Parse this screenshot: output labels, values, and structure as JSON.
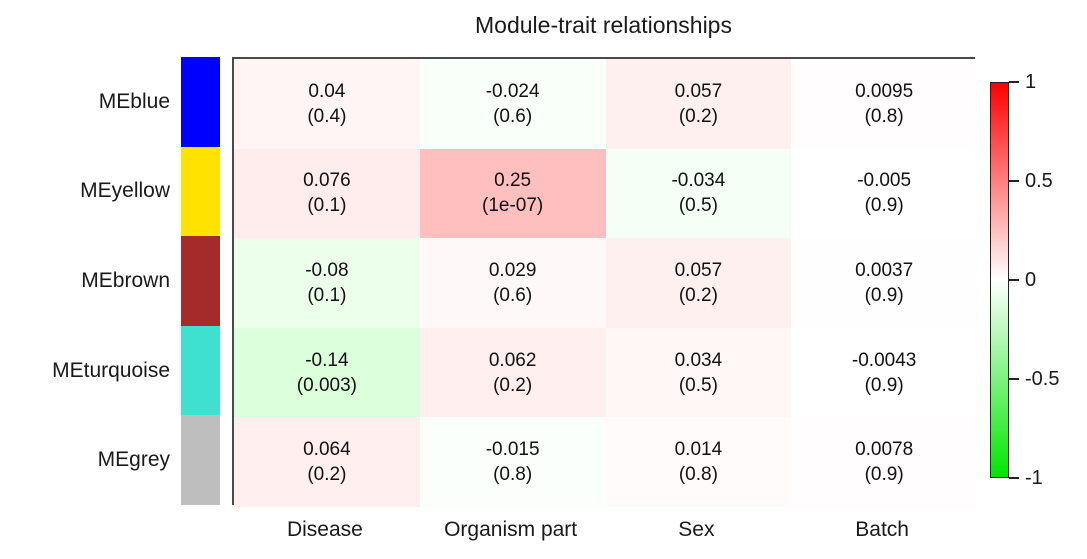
{
  "chart_data": {
    "type": "heatmap",
    "title": "Module-trait relationships",
    "rows": [
      {
        "label": "MEblue",
        "color": "#0000FF"
      },
      {
        "label": "MEyellow",
        "color": "#FFE200"
      },
      {
        "label": "MEbrown",
        "color": "#A52A2A"
      },
      {
        "label": "MEturquoise",
        "color": "#40E0D0"
      },
      {
        "label": "MEgrey",
        "color": "#BEBEBE"
      }
    ],
    "columns": [
      "Disease",
      "Organism part",
      "Sex",
      "Batch"
    ],
    "cells": [
      [
        {
          "corr": 0.04,
          "label": "0.04",
          "p": "(0.4)"
        },
        {
          "corr": -0.024,
          "label": "-0.024",
          "p": "(0.6)"
        },
        {
          "corr": 0.057,
          "label": "0.057",
          "p": "(0.2)"
        },
        {
          "corr": 0.0095,
          "label": "0.0095",
          "p": "(0.8)"
        }
      ],
      [
        {
          "corr": 0.076,
          "label": "0.076",
          "p": "(0.1)"
        },
        {
          "corr": 0.25,
          "label": "0.25",
          "p": "(1e-07)"
        },
        {
          "corr": -0.034,
          "label": "-0.034",
          "p": "(0.5)"
        },
        {
          "corr": -0.005,
          "label": "-0.005",
          "p": "(0.9)"
        }
      ],
      [
        {
          "corr": -0.08,
          "label": "-0.08",
          "p": "(0.1)"
        },
        {
          "corr": 0.029,
          "label": "0.029",
          "p": "(0.6)"
        },
        {
          "corr": 0.057,
          "label": "0.057",
          "p": "(0.2)"
        },
        {
          "corr": 0.0037,
          "label": "0.0037",
          "p": "(0.9)"
        }
      ],
      [
        {
          "corr": -0.14,
          "label": "-0.14",
          "p": "(0.003)"
        },
        {
          "corr": 0.062,
          "label": "0.062",
          "p": "(0.2)"
        },
        {
          "corr": 0.034,
          "label": "0.034",
          "p": "(0.5)"
        },
        {
          "corr": -0.0043,
          "label": "-0.0043",
          "p": "(0.9)"
        }
      ],
      [
        {
          "corr": 0.064,
          "label": "0.064",
          "p": "(0.2)"
        },
        {
          "corr": -0.015,
          "label": "-0.015",
          "p": "(0.8)"
        },
        {
          "corr": 0.014,
          "label": "0.014",
          "p": "(0.8)"
        },
        {
          "corr": 0.0078,
          "label": "0.0078",
          "p": "(0.9)"
        }
      ]
    ],
    "colorbar": {
      "range": [
        -1,
        1
      ],
      "tick_values": [
        1,
        0.5,
        0,
        -0.5,
        -1
      ],
      "tick_labels": [
        "1",
        "0.5",
        "0",
        "-0.5",
        "-1"
      ],
      "max_color": "#FF0000",
      "mid_color": "#FFFFFF",
      "min_color": "#00E600",
      "position": "right"
    },
    "legend_position": "right",
    "grid": false
  }
}
